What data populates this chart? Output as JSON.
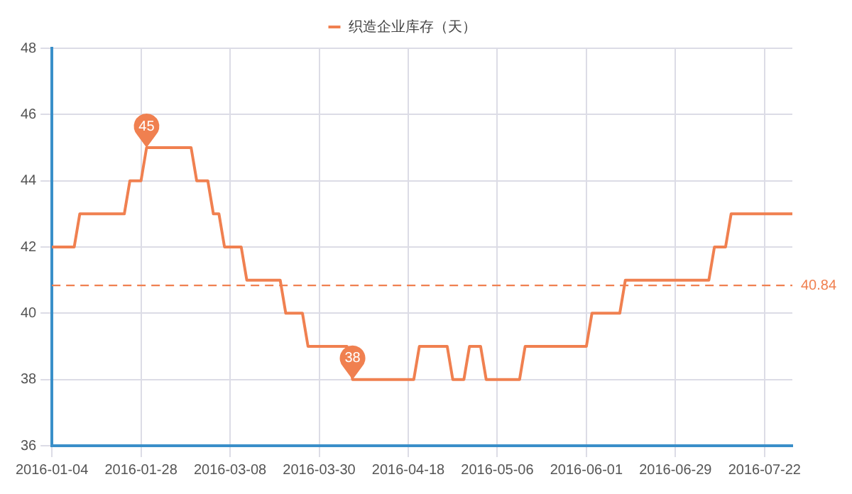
{
  "chart_data": {
    "type": "line",
    "categories": [
      "2016-01-04",
      null,
      null,
      null,
      null,
      null,
      null,
      null,
      null,
      null,
      null,
      null,
      null,
      null,
      null,
      null,
      "2016-01-28",
      null,
      null,
      null,
      null,
      null,
      null,
      null,
      null,
      null,
      null,
      null,
      null,
      null,
      null,
      null,
      "2016-03-08",
      null,
      null,
      null,
      null,
      null,
      null,
      null,
      null,
      null,
      null,
      null,
      null,
      null,
      null,
      null,
      "2016-03-30",
      null,
      null,
      null,
      null,
      null,
      null,
      null,
      null,
      null,
      null,
      null,
      null,
      null,
      null,
      null,
      "2016-04-18",
      null,
      null,
      null,
      null,
      null,
      null,
      null,
      null,
      null,
      null,
      null,
      null,
      null,
      null,
      null,
      "2016-05-06",
      null,
      null,
      null,
      null,
      null,
      null,
      null,
      null,
      null,
      null,
      null,
      null,
      null,
      null,
      null,
      "2016-06-01",
      null,
      null,
      null,
      null,
      null,
      null,
      null,
      null,
      null,
      null,
      null,
      null,
      null,
      null,
      null,
      "2016-06-29",
      null,
      null,
      null,
      null,
      null,
      null,
      null,
      null,
      null,
      null,
      null,
      null,
      null,
      null,
      null,
      "2016-07-22",
      null,
      null,
      null,
      null,
      null
    ],
    "series": [
      {
        "name": "织造企业库存（天）",
        "color": "#f08050",
        "values": [
          42,
          42,
          42,
          42,
          42,
          43,
          43,
          43,
          43,
          43,
          43,
          43,
          43,
          43,
          44,
          44,
          44,
          45,
          45,
          45,
          45,
          45,
          45,
          45,
          45,
          45,
          44,
          44,
          44,
          43,
          43,
          42,
          42,
          42,
          42,
          41,
          41,
          41,
          41,
          41,
          41,
          41,
          40,
          40,
          40,
          40,
          39,
          39,
          39,
          39,
          39,
          39,
          39,
          39,
          38,
          38,
          38,
          38,
          38,
          38,
          38,
          38,
          38,
          38,
          38,
          38,
          39,
          39,
          39,
          39,
          39,
          39,
          38,
          38,
          38,
          39,
          39,
          39,
          38,
          38,
          38,
          38,
          38,
          38,
          38,
          39,
          39,
          39,
          39,
          39,
          39,
          39,
          39,
          39,
          39,
          39,
          39,
          40,
          40,
          40,
          40,
          40,
          40,
          41,
          41,
          41,
          41,
          41,
          41,
          41,
          41,
          41,
          41,
          41,
          41,
          41,
          41,
          41,
          41,
          42,
          42,
          42,
          43,
          43,
          43,
          43,
          43,
          43,
          43,
          43,
          43,
          43,
          43,
          43
        ]
      }
    ],
    "ylim": [
      36,
      48
    ],
    "yticks": [
      36,
      38,
      40,
      42,
      44,
      46,
      48
    ],
    "ref_lines": [
      {
        "axis": "y",
        "value": 40.84,
        "label": "40.84",
        "color": "#f08050",
        "line_style": "dashed"
      }
    ],
    "annotations": [
      {
        "text": "45",
        "y": 45
      },
      {
        "text": "38",
        "y": 38
      }
    ],
    "grid": true,
    "legend": "top",
    "marker": "none",
    "line_style": "solid"
  }
}
